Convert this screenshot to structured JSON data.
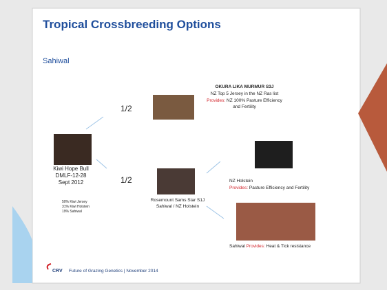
{
  "header": {
    "title": "Tropical Crossbreeding Options",
    "subtitle": "Sahiwal"
  },
  "sire": {
    "name": "OKURA LIKA MURMUR S3J",
    "line1": "NZ Top 5 Jersey in the NZ Ras list",
    "provides_label": "Provides:",
    "provides": " NZ 100% Pasture Efficiency",
    "line3": "and Fertility"
  },
  "fractions": [
    "1/2",
    "1/2"
  ],
  "bull": {
    "lines": [
      "Kiwi Hope Bull",
      "DMLF-12-28",
      "Sept 2012"
    ],
    "breakdown": [
      "50% Kiwi Jersey",
      "31% Kiwi Holstein",
      "19% Sahiwal"
    ]
  },
  "dam": {
    "lines": [
      "Rosemount Sams Star S1J",
      "Sahiwal / NZ Holstein"
    ]
  },
  "holstein": {
    "name": "NZ Holstein",
    "provides_label": "Provides:",
    "provides": " Pasture Efficiency and Fertility"
  },
  "sahiwal": {
    "name": "Sahiwal ",
    "provides_label": "Provides:",
    "provides": " Heat & Tick resistance"
  },
  "footer": {
    "logo": "CRV",
    "text": "Future of Grazing Genetics | November 2014"
  }
}
